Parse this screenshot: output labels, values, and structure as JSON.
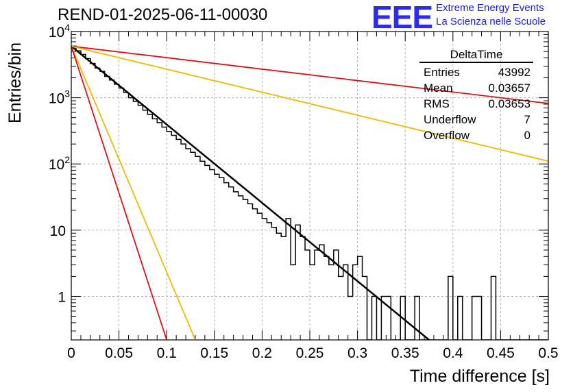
{
  "run_title": "REND-01-2025-06-11-00030",
  "logo": {
    "mark": "EEE",
    "line1": "Extreme Energy Events",
    "line2": "La Scienza nelle Scuole",
    "color": "#2a2aff"
  },
  "stats_box": {
    "header": "DeltaTime",
    "rows": [
      {
        "label": "Entries",
        "value": "43992"
      },
      {
        "label": "Mean",
        "value": "0.03657"
      },
      {
        "label": "RMS",
        "value": "0.03653"
      },
      {
        "label": "Underflow",
        "value": "7"
      },
      {
        "label": "Overflow",
        "value": "0"
      }
    ]
  },
  "chart_data": {
    "type": "line",
    "title": "REND-01-2025-06-11-00030",
    "xlabel": "Time difference [s]",
    "ylabel": "Entries/bin",
    "xlim": [
      0,
      0.5
    ],
    "ylim": [
      0.22,
      10000
    ],
    "yscale": "log",
    "grid": true,
    "x_ticks": [
      "0",
      "0.05",
      "0.1",
      "0.15",
      "0.2",
      "0.25",
      "0.3",
      "0.35",
      "0.4",
      "0.45",
      "0.5"
    ],
    "y_ticks": [
      "1",
      "10",
      "10^2",
      "10^3",
      "10^4"
    ],
    "histogram": {
      "name": "DeltaTime",
      "bin_width": 0.005,
      "bin_start": 0,
      "color": "#000000",
      "values": [
        6000,
        5100,
        4500,
        3900,
        3300,
        2800,
        2500,
        2100,
        1850,
        1600,
        1400,
        1200,
        1000,
        880,
        770,
        650,
        560,
        480,
        420,
        360,
        310,
        270,
        235,
        200,
        170,
        150,
        130,
        110,
        95,
        82,
        70,
        62,
        52,
        45,
        38,
        33,
        29,
        25,
        21,
        18,
        15,
        13,
        11,
        9,
        8,
        15,
        3,
        12,
        8,
        5,
        3,
        5,
        6,
        4,
        3,
        5,
        2,
        3,
        1,
        3,
        4,
        2,
        0.22,
        1,
        0.22,
        1,
        1,
        0.22,
        0.22,
        1,
        0.22,
        0.22,
        1,
        0.22,
        0.22,
        0.22,
        0.22,
        0.22,
        0.22,
        2,
        0.22,
        1,
        0.22,
        0.22,
        1,
        1,
        0.22,
        0.22,
        2,
        0.22,
        0.22,
        0.22,
        0.22,
        0.22,
        0.22,
        0.22,
        0.22,
        0.22,
        0.22,
        0.22
      ]
    },
    "curves": [
      {
        "color": "#000000",
        "width": 2.5,
        "points": [
          [
            0,
            6000
          ],
          [
            0.375,
            0.22
          ]
        ]
      },
      {
        "color": "#dd1111",
        "width": 1.8,
        "points": [
          [
            0,
            6000
          ],
          [
            0.5,
            820
          ]
        ]
      },
      {
        "color": "#f0b800",
        "width": 1.8,
        "points": [
          [
            0,
            6000
          ],
          [
            0.5,
            110
          ]
        ]
      },
      {
        "color": "#f0b800",
        "width": 1.8,
        "points": [
          [
            0,
            6000
          ],
          [
            0.13,
            0.22
          ]
        ]
      },
      {
        "color": "#dd1111",
        "width": 1.8,
        "points": [
          [
            0,
            6000
          ],
          [
            0.1,
            0.22
          ]
        ]
      }
    ]
  }
}
